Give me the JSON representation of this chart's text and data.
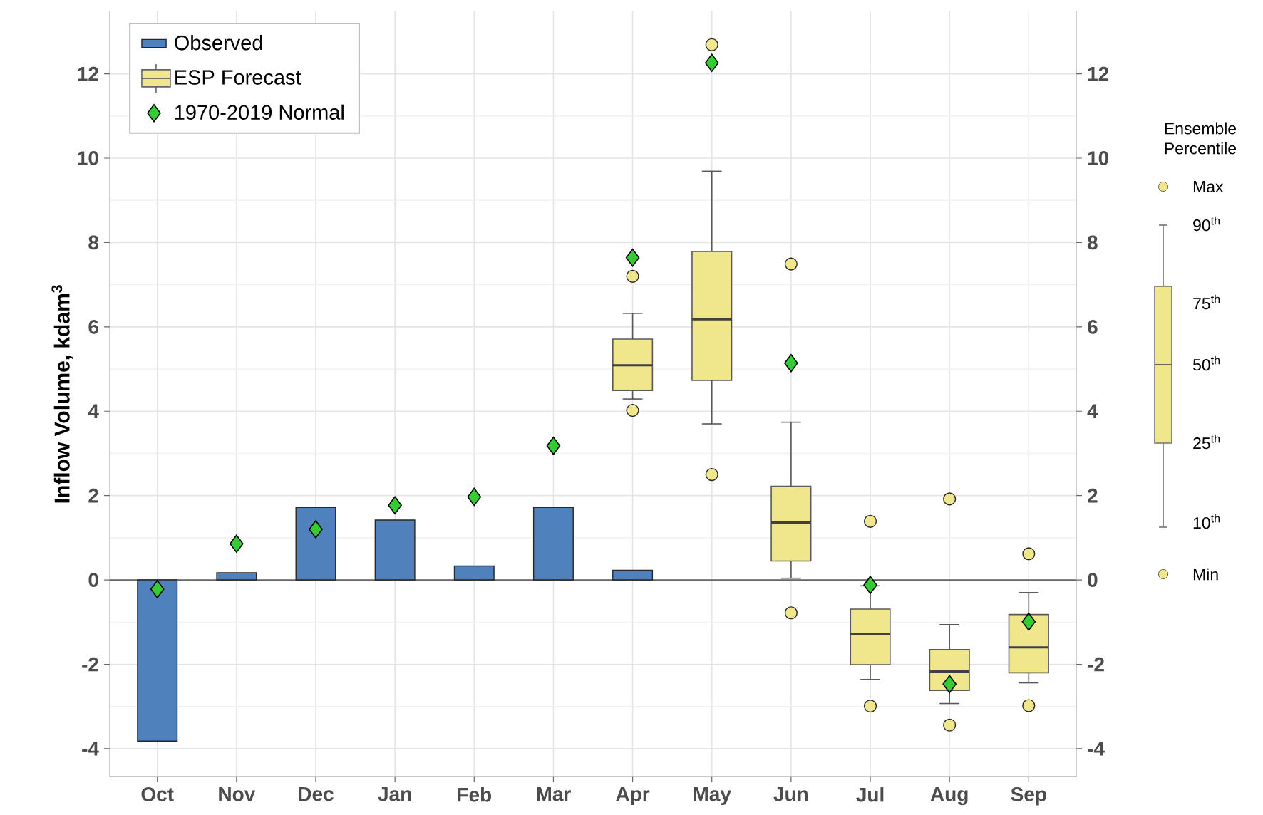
{
  "chart_data": {
    "type": "bar",
    "ylabel": "Inflow Volume, kdam$^{3}$",
    "categories": [
      "Oct",
      "Nov",
      "Dec",
      "Jan",
      "Feb",
      "Mar",
      "Apr",
      "May",
      "Jun",
      "Jul",
      "Aug",
      "Sep"
    ],
    "series": [
      {
        "name": "Observed",
        "color": "#4f81bd",
        "values": [
          -3.82,
          0.17,
          1.72,
          1.42,
          0.33,
          1.72,
          0.23,
          null,
          null,
          null,
          null,
          null
        ]
      },
      {
        "name": "ESP Forecast",
        "type": "box",
        "color": "#f0e68c",
        "boxes": [
          null,
          null,
          null,
          null,
          null,
          null,
          {
            "low": 4.29,
            "q1": 4.49,
            "median": 5.09,
            "q3": 5.71,
            "high": 6.32,
            "outliers": [
              4.02,
              7.2
            ]
          },
          {
            "low": 3.7,
            "q1": 4.73,
            "median": 6.18,
            "q3": 7.79,
            "high": 9.69,
            "outliers": [
              2.5,
              12.69
            ]
          },
          {
            "low": 0.04,
            "q1": 0.45,
            "median": 1.36,
            "q3": 2.22,
            "high": 3.74,
            "outliers": [
              -0.78,
              7.49
            ]
          },
          {
            "low": -2.36,
            "q1": -2.01,
            "median": -1.28,
            "q3": -0.69,
            "high": -0.14,
            "outliers": [
              -2.99,
              1.39
            ]
          },
          {
            "low": -2.93,
            "q1": -2.62,
            "median": -2.17,
            "q3": -1.65,
            "high": -1.06,
            "outliers": [
              -3.44,
              1.92
            ]
          },
          {
            "low": -2.44,
            "q1": -2.2,
            "median": -1.6,
            "q3": -0.82,
            "high": -0.3,
            "outliers": [
              -2.98,
              0.62
            ]
          }
        ]
      },
      {
        "name": "1970-2019 Normal",
        "type": "scatter",
        "marker": "diamond",
        "color": "#33cc33",
        "values": [
          -0.22,
          0.86,
          1.2,
          1.77,
          1.97,
          3.18,
          7.64,
          12.26,
          5.14,
          -0.12,
          -2.47,
          -0.99
        ]
      }
    ],
    "ylim": [
      -4.66,
      13.48
    ],
    "yticks": [
      -4,
      -2,
      0,
      2,
      4,
      6,
      8,
      10,
      12
    ],
    "y2lim": [
      -4.66,
      13.48
    ],
    "y2ticks": [
      -4,
      -2,
      0,
      2,
      4,
      6,
      8,
      10,
      12
    ],
    "grid": true,
    "legend": "top left",
    "annotations": [
      "Ensemble Percentile",
      "Max",
      "90$^{th}$",
      "75$^{th}$",
      "50$^{th}$",
      "25$^{th}$",
      "10$^{th}$",
      "Min"
    ]
  }
}
